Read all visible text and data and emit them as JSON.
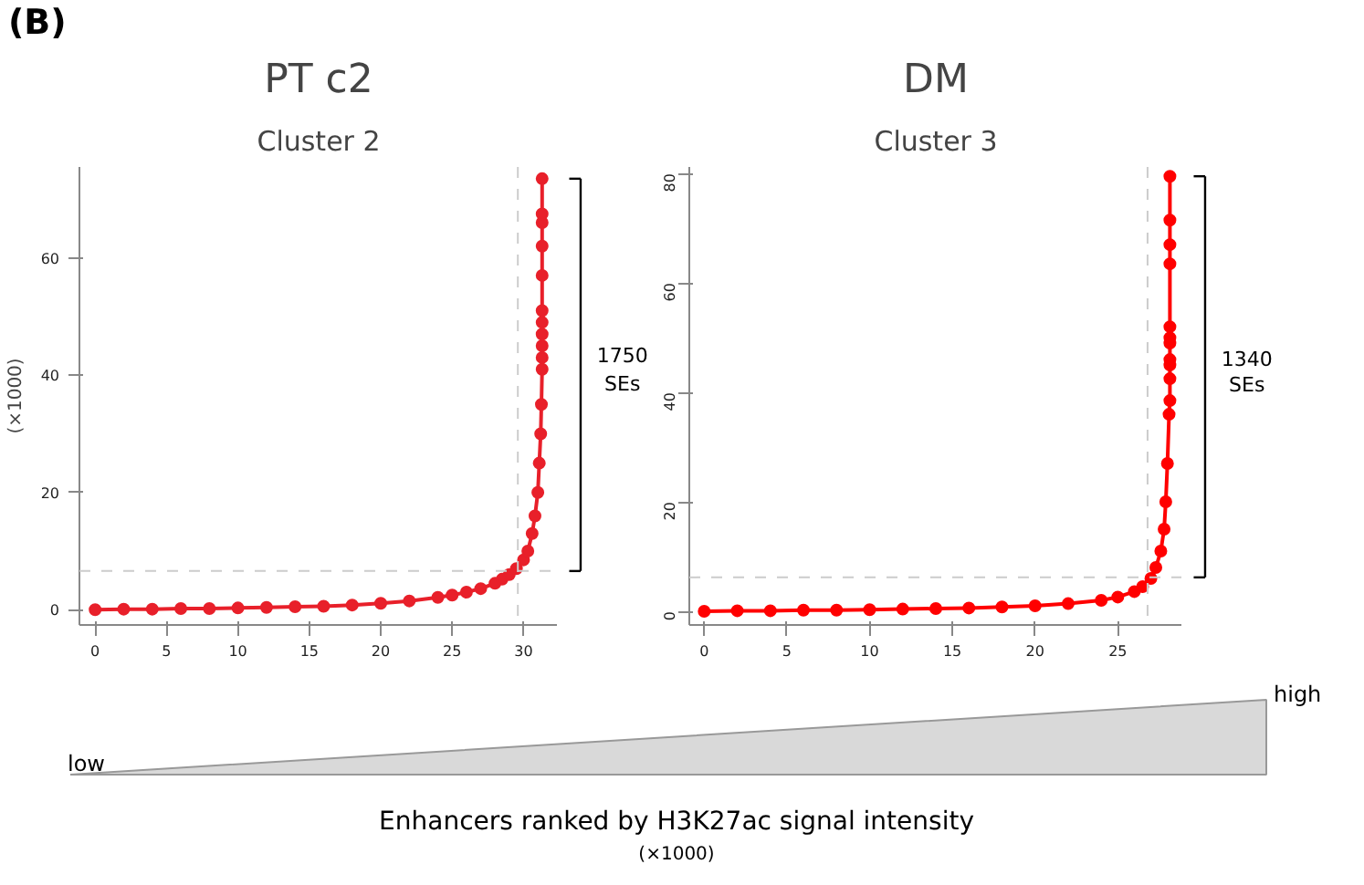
{
  "chart_data": [
    {
      "type": "line",
      "title": "PT c2",
      "subtitle": "Cluster 2",
      "ylabel": "(×1000)",
      "annotations": [
        "(B)",
        "1750 SEs"
      ],
      "marker": "circle",
      "line_style": "solid",
      "grid": false,
      "xlim": [
        -1.1,
        32.4
      ],
      "xticks": [
        0,
        5,
        10,
        15,
        20,
        25,
        30
      ],
      "ylim": [
        -2.6,
        75.5
      ],
      "yticks": [
        0,
        20,
        40,
        60
      ],
      "ref_lines": [
        {
          "axis": "x",
          "value": 29.6,
          "color": "#cccccc",
          "line_style": "dashed"
        },
        {
          "axis": "y",
          "value": 6.6,
          "color": "#cccccc",
          "line_style": "dashed"
        }
      ],
      "series": [
        {
          "color": "#e8202a",
          "x": [
            0,
            2,
            4,
            6,
            8,
            10,
            12,
            14,
            16,
            18,
            20,
            22,
            24,
            25,
            26,
            27,
            28,
            28.5,
            29,
            29.5,
            30,
            30.3,
            30.6,
            30.8,
            31,
            31.1,
            31.2,
            31.25,
            31.3,
            31.3,
            31.3,
            31.3,
            31.3,
            31.3,
            31.3,
            31.3,
            31.3,
            31.3,
            31.3
          ],
          "values": [
            0,
            0.1,
            0.1,
            0.2,
            0.2,
            0.3,
            0.4,
            0.5,
            0.6,
            0.8,
            1.1,
            1.5,
            2.1,
            2.5,
            3,
            3.6,
            4.5,
            5.2,
            6,
            7,
            8.5,
            10,
            13,
            16,
            20,
            25,
            30,
            35,
            41,
            43,
            45,
            47,
            49,
            51,
            57,
            62,
            66,
            67.5,
            73.5
          ]
        }
      ]
    },
    {
      "type": "line",
      "title": "DM",
      "subtitle": "Cluster 3",
      "annotations": [
        "1340 SEs"
      ],
      "marker": "circle",
      "line_style": "solid",
      "grid": false,
      "xlim": [
        -0.9,
        28.9
      ],
      "xticks": [
        0,
        5,
        10,
        15,
        20,
        25
      ],
      "ylim": [
        -2.5,
        81.2
      ],
      "yticks": [
        0,
        20,
        40,
        60,
        80
      ],
      "ref_lines": [
        {
          "axis": "x",
          "value": 26.8,
          "color": "#cccccc",
          "line_style": "dashed"
        },
        {
          "axis": "y",
          "value": 6.2,
          "color": "#cccccc",
          "line_style": "dashed"
        }
      ],
      "series": [
        {
          "color": "#ff0000",
          "x": [
            0,
            2,
            4,
            6,
            8,
            10,
            12,
            14,
            16,
            18,
            20,
            22,
            24,
            25,
            26,
            26.5,
            27,
            27.3,
            27.6,
            27.8,
            27.9,
            28,
            28.1,
            28.15,
            28.15,
            28.15,
            28.15,
            28.15,
            28.15,
            28.15,
            28.15,
            28.15,
            28.15,
            28.15
          ],
          "values": [
            0,
            0.1,
            0.1,
            0.2,
            0.2,
            0.3,
            0.4,
            0.5,
            0.6,
            0.8,
            1.0,
            1.4,
            2.0,
            2.6,
            3.6,
            4.5,
            6,
            8,
            11,
            15,
            20,
            27,
            36,
            38.5,
            42.5,
            45,
            46,
            49,
            50,
            52,
            63.5,
            67,
            71.5,
            79.5
          ]
        }
      ]
    },
    {
      "type": "other",
      "annotations": [
        "low",
        "high",
        "Enhancers ranked by H3K27ac signal intensity",
        "(×1000)"
      ]
    }
  ]
}
